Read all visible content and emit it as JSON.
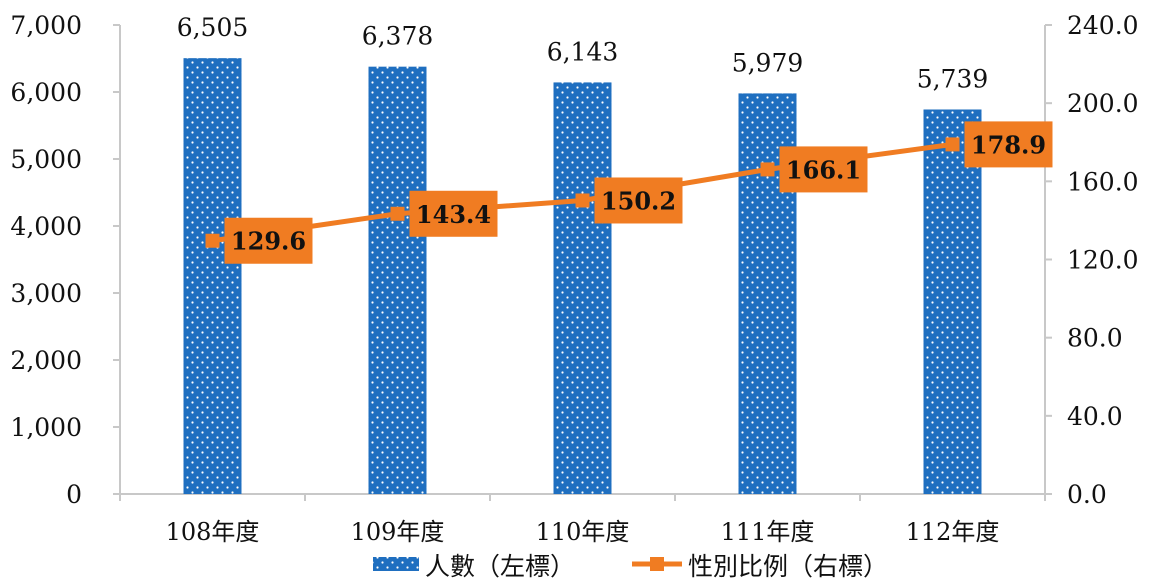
{
  "chart_data": {
    "type": "bar",
    "categories": [
      "108年度",
      "109年度",
      "110年度",
      "111年度",
      "112年度"
    ],
    "series": [
      {
        "name": "人數（左標）",
        "type": "bar",
        "axis": "left",
        "values": [
          6505,
          6378,
          6143,
          5979,
          5739
        ],
        "labels": [
          "6,505",
          "6,378",
          "6,143",
          "5,979",
          "5,739"
        ]
      },
      {
        "name": "性別比例（右標）",
        "type": "line",
        "axis": "right",
        "values": [
          129.6,
          143.4,
          150.2,
          166.1,
          178.9
        ],
        "labels": [
          "129.6",
          "143.4",
          "150.2",
          "166.1",
          "178.9"
        ]
      }
    ],
    "y_left": {
      "ylim": [
        0,
        7000
      ],
      "ticks": [
        0,
        1000,
        2000,
        3000,
        4000,
        5000,
        6000,
        7000
      ],
      "tick_labels": [
        "0",
        "1,000",
        "2,000",
        "3,000",
        "4,000",
        "5,000",
        "6,000",
        "7,000"
      ]
    },
    "y_right": {
      "ylim": [
        0,
        240
      ],
      "ticks": [
        0,
        40,
        80,
        120,
        160,
        200,
        240
      ],
      "tick_labels": [
        "0.0",
        "40.0",
        "80.0",
        "120.0",
        "160.0",
        "200.0",
        "240.0"
      ]
    },
    "grid": false,
    "legend_position": "bottom",
    "colors": {
      "bar": "#1f6fc0",
      "bar_dots": "#ffffff",
      "line": "#f07c22",
      "axis": "#c8c8c8"
    }
  }
}
